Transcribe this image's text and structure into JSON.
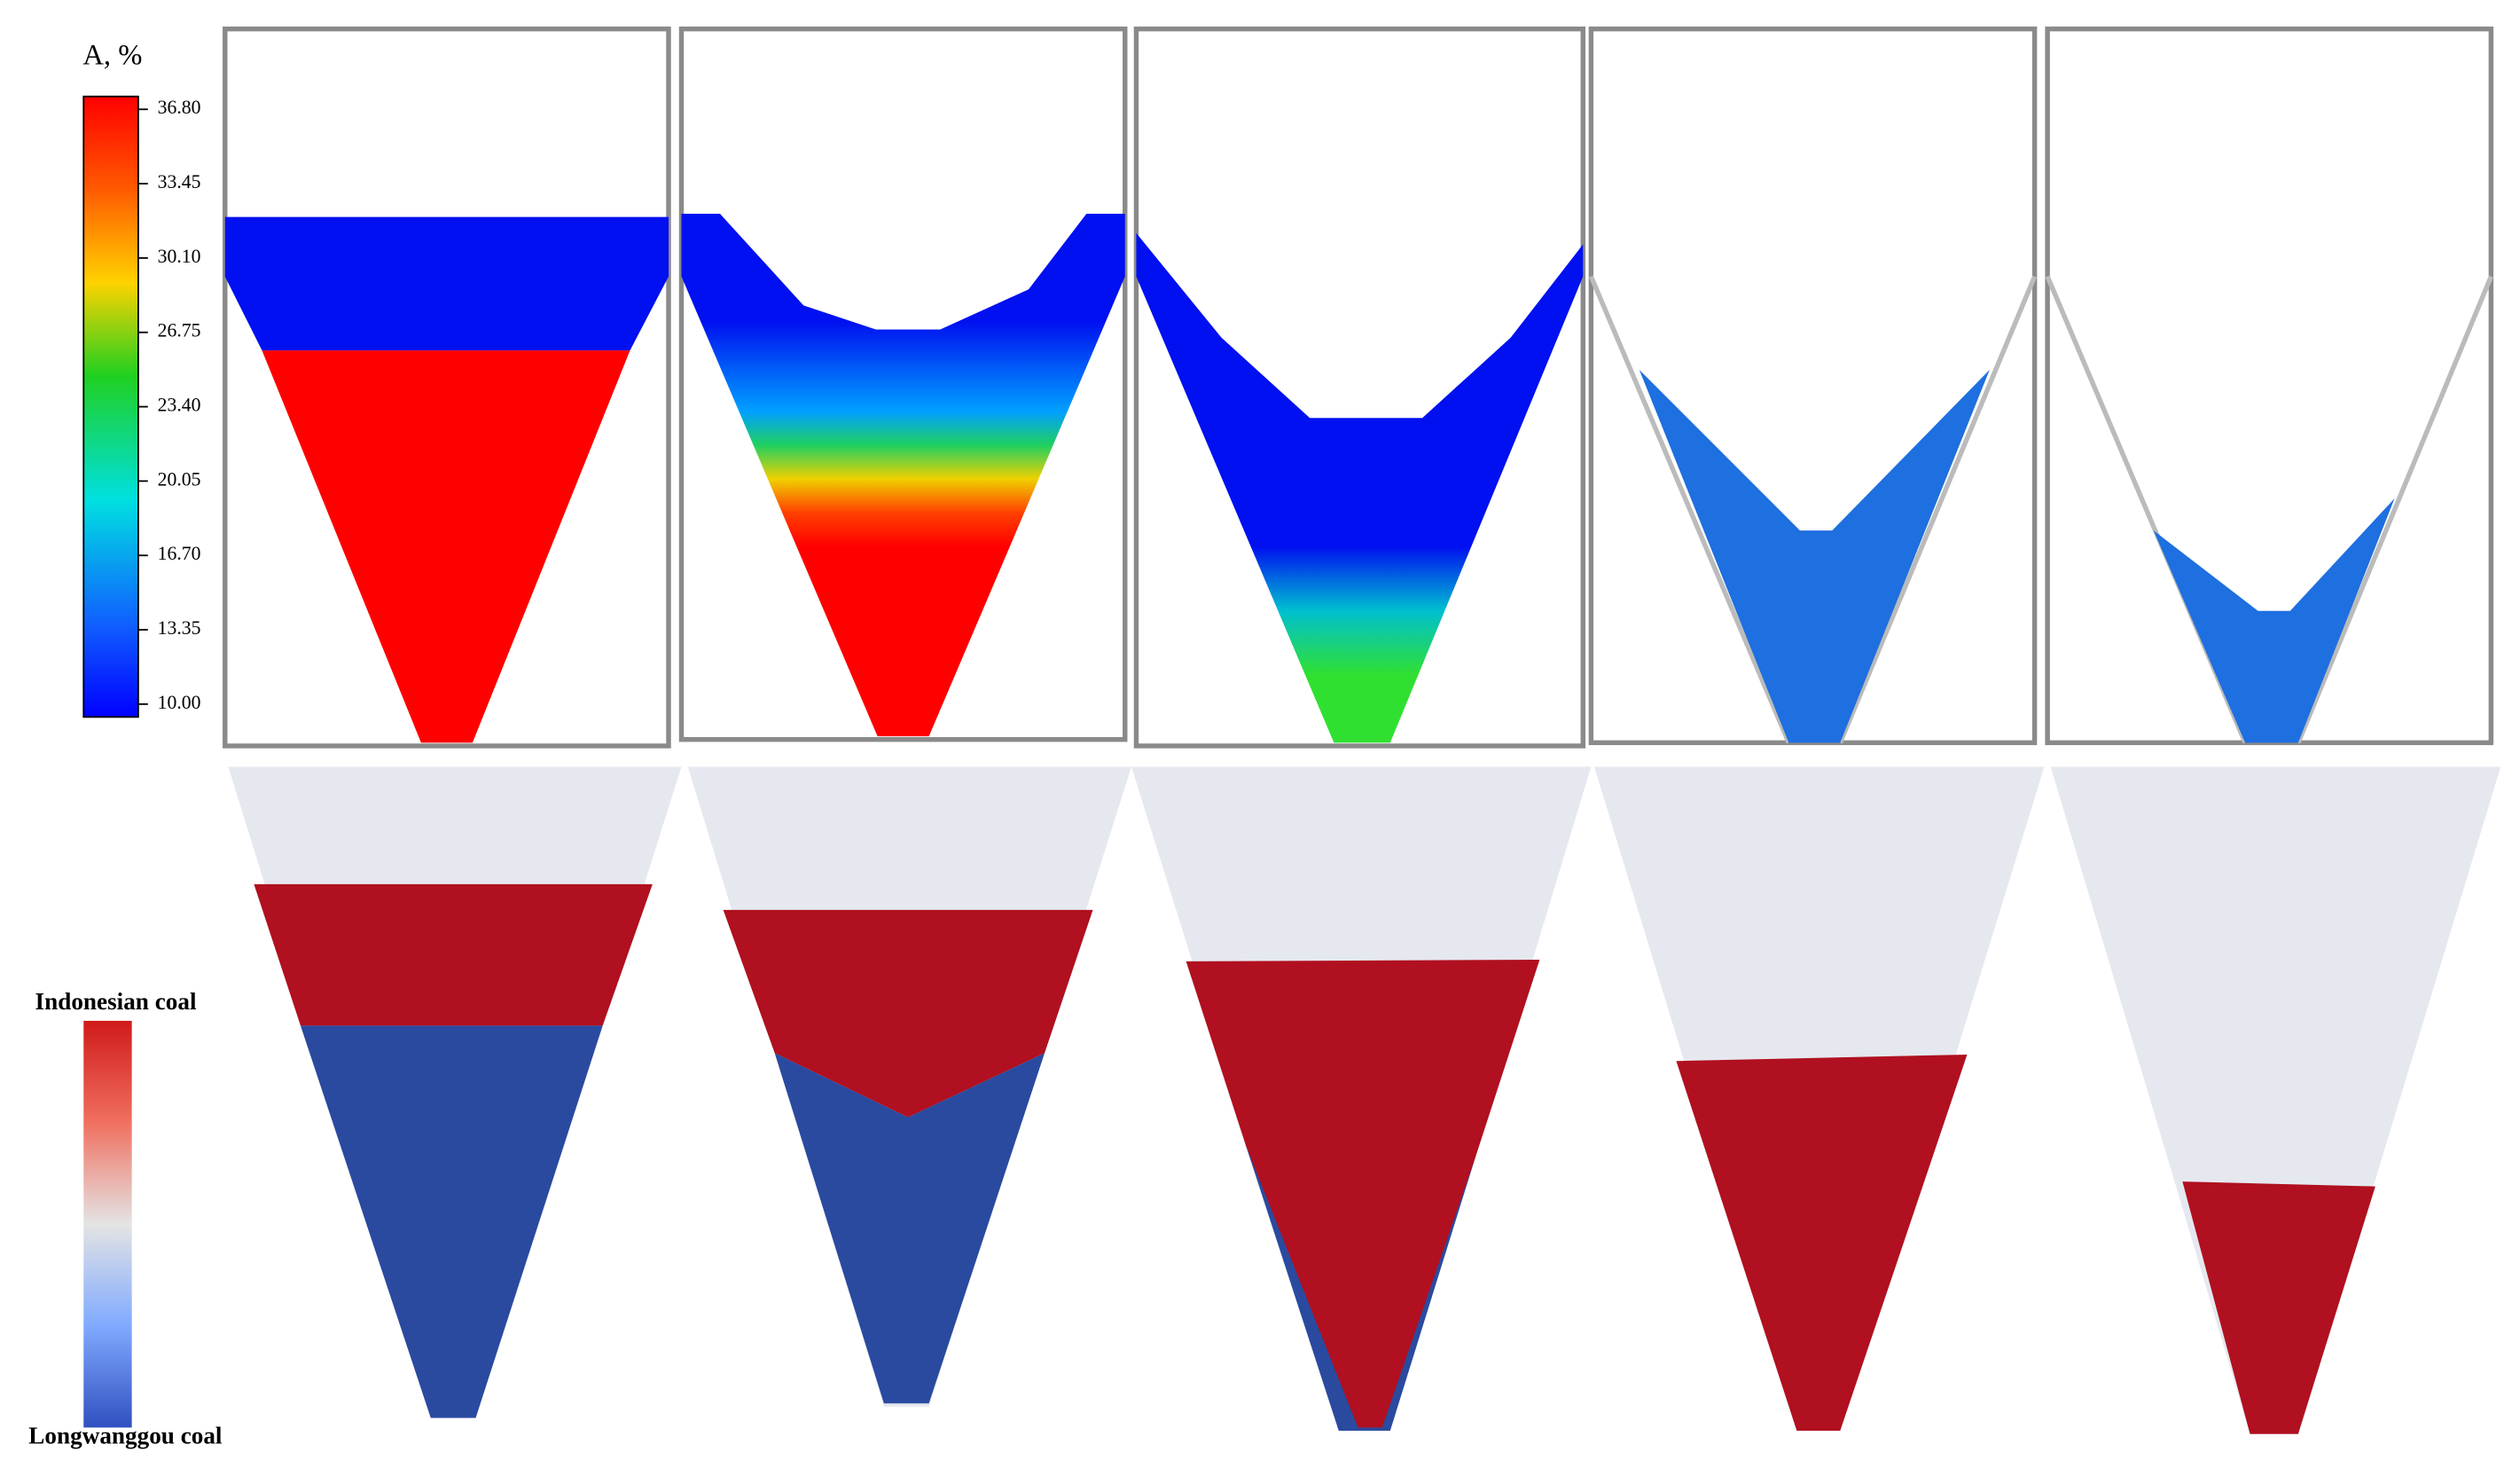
{
  "colorbar": {
    "title": "A, %",
    "ticks": [
      "36.80",
      "33.45",
      "30.10",
      "26.75",
      "23.40",
      "20.05",
      "16.70",
      "13.35",
      "10.00"
    ]
  },
  "legend": {
    "top": "Indonesian coal",
    "bottom": "Longwanggou coal"
  }
}
